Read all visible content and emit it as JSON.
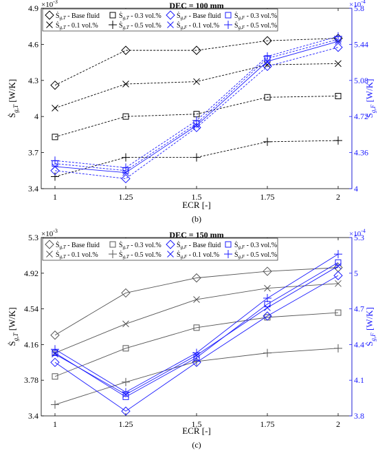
{
  "chart_data": [
    {
      "type": "line",
      "title": "DEC = 100 mm",
      "caption": "(b)",
      "xlabel": "ECR [-]",
      "ylabel_left": "Ṡg,T [W/K]",
      "ylabel_right": "Ṡg,F [W/K]",
      "left_exponent": "×10",
      "left_exponent_power": "-3",
      "right_exponent": "×10",
      "right_exponent_power": "-4",
      "x": [
        1,
        1.25,
        1.5,
        1.75,
        2
      ],
      "x_tick_labels": [
        "1",
        "1.25",
        "1.5",
        "1.75",
        "2"
      ],
      "ylim_left": [
        3.4,
        4.9
      ],
      "yticks_left": [
        "3.4",
        "3.7",
        "4",
        "4.3",
        "4.6",
        "4.9"
      ],
      "ylim_right": [
        4.0,
        5.8
      ],
      "yticks_right": [
        "4",
        "4.36",
        "4.72",
        "5.08",
        "5.44",
        "5.8"
      ],
      "legend_position": "top",
      "series": [
        {
          "name": "Ṡg,T - Base fluid",
          "axis": "left",
          "marker": "diamond",
          "color": "#000000",
          "values": [
            4.26,
            4.55,
            4.55,
            4.63,
            4.65
          ]
        },
        {
          "name": "Ṡg,T - 0.3 vol.%",
          "axis": "left",
          "marker": "square",
          "color": "#000000",
          "values": [
            3.83,
            4.0,
            4.02,
            4.16,
            4.17
          ]
        },
        {
          "name": "Ṡg,T - 0.1 vol.%",
          "axis": "left",
          "marker": "x",
          "color": "#000000",
          "values": [
            4.07,
            4.27,
            4.29,
            4.43,
            4.44
          ]
        },
        {
          "name": "Ṡg,T - 0.5 vol.%",
          "axis": "left",
          "marker": "plus",
          "color": "#000000",
          "values": [
            3.5,
            3.66,
            3.66,
            3.79,
            3.8
          ]
        },
        {
          "name": "Ṡg,F - Base fluid",
          "axis": "right",
          "marker": "diamond",
          "color": "#1a1aff",
          "values": [
            4.18,
            4.1,
            4.61,
            5.22,
            5.41
          ]
        },
        {
          "name": "Ṡg,F - 0.3 vol.%",
          "axis": "right",
          "marker": "square",
          "color": "#1a1aff",
          "values": [
            4.25,
            4.18,
            4.65,
            5.3,
            5.49
          ]
        },
        {
          "name": "Ṡg,F - 0.1 vol.%",
          "axis": "right",
          "marker": "x",
          "color": "#1a1aff",
          "values": [
            4.22,
            4.16,
            4.63,
            5.27,
            5.47
          ]
        },
        {
          "name": "Ṡg,F - 0.5 vol.%",
          "axis": "right",
          "marker": "plus",
          "color": "#1a1aff",
          "values": [
            4.28,
            4.21,
            4.68,
            5.32,
            5.52
          ]
        }
      ]
    },
    {
      "type": "line",
      "title": "DEC = 150 mm",
      "caption": "(c)",
      "xlabel": "ECR [-]",
      "ylabel_left": "Ṡg,T [W/K]",
      "ylabel_right": "Ṡg,F [W/K]",
      "left_exponent": "×10",
      "left_exponent_power": "-3",
      "right_exponent": "×10",
      "right_exponent_power": "-4",
      "x": [
        1,
        1.25,
        1.5,
        1.75,
        2
      ],
      "x_tick_labels": [
        "1",
        "1.25",
        "1.5",
        "1.75",
        "2"
      ],
      "ylim_left": [
        3.4,
        5.3
      ],
      "yticks_left": [
        "3.4",
        "3.78",
        "4.16",
        "4.54",
        "4.92",
        "5.3"
      ],
      "ylim_right": [
        3.8,
        5.3
      ],
      "yticks_right": [
        "3.8",
        "4.1",
        "4.4",
        "4.7",
        "5",
        "5.3"
      ],
      "legend_position": "top",
      "series": [
        {
          "name": "Ṡg,T - Base fluid",
          "axis": "left",
          "marker": "diamond",
          "color": "#555555",
          "values": [
            4.26,
            4.71,
            4.87,
            4.94,
            4.98
          ]
        },
        {
          "name": "Ṡg,T - 0.3 vol.%",
          "axis": "left",
          "marker": "square",
          "color": "#555555",
          "values": [
            3.82,
            4.12,
            4.34,
            4.45,
            4.5
          ]
        },
        {
          "name": "Ṡg,T - 0.1 vol.%",
          "axis": "left",
          "marker": "x",
          "color": "#555555",
          "values": [
            4.07,
            4.38,
            4.64,
            4.76,
            4.81
          ]
        },
        {
          "name": "Ṡg,T - 0.5 vol.%",
          "axis": "left",
          "marker": "plus",
          "color": "#555555",
          "values": [
            3.52,
            3.76,
            3.98,
            4.07,
            4.12
          ]
        },
        {
          "name": "Ṡg,F - Base fluid",
          "axis": "right",
          "marker": "diamond",
          "color": "#1a1aff",
          "values": [
            4.25,
            3.84,
            4.25,
            4.64,
            4.98
          ]
        },
        {
          "name": "Ṡg,F - 0.3 vol.%",
          "axis": "right",
          "marker": "square",
          "color": "#1a1aff",
          "values": [
            4.33,
            3.96,
            4.29,
            4.74,
            5.09
          ]
        },
        {
          "name": "Ṡg,F - 0.1 vol.%",
          "axis": "right",
          "marker": "x",
          "color": "#1a1aff",
          "values": [
            4.32,
            3.98,
            4.31,
            4.71,
            5.06
          ]
        },
        {
          "name": "Ṡg,F - 0.5 vol.%",
          "axis": "right",
          "marker": "plus",
          "color": "#1a1aff",
          "values": [
            4.36,
            4.0,
            4.33,
            4.79,
            5.16
          ]
        }
      ]
    }
  ]
}
